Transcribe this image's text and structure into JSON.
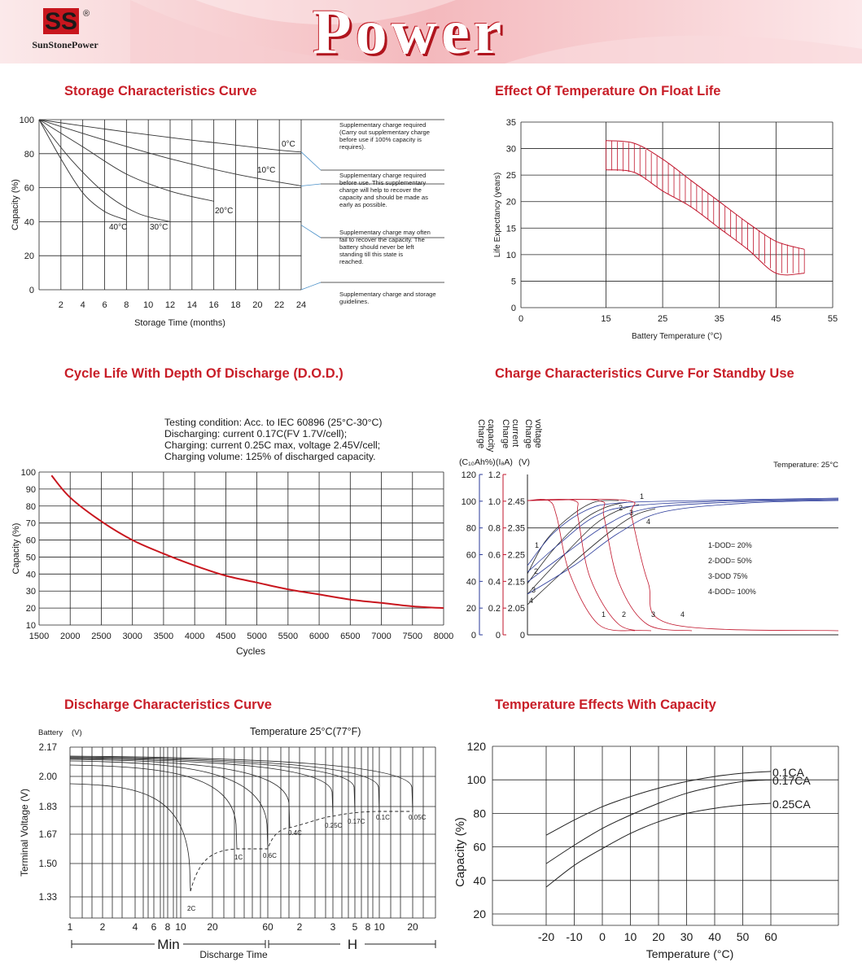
{
  "header": {
    "logo_mark": "SS",
    "logo_registered": "®",
    "logo_text": "SunStonePower",
    "banner_text": "Power"
  },
  "sections": {
    "storage": "Storage Characteristics Curve",
    "float_life": "Effect Of Temperature On Float Life",
    "cycle_life": "Cycle Life With Depth Of Discharge (D.O.D.)",
    "charge": "Charge Characteristics Curve For Standby Use",
    "discharge": "Discharge Characteristics Curve",
    "temperature": "Temperature Effects With Capacity"
  },
  "chart_data": [
    {
      "id": "storage",
      "type": "line",
      "title": "Storage Characteristics Curve",
      "xlabel": "Storage Time (months)",
      "ylabel": "Capacity (%)",
      "xlim": [
        0,
        24
      ],
      "ylim": [
        0,
        100
      ],
      "xticks": [
        2,
        4,
        6,
        8,
        10,
        12,
        14,
        16,
        18,
        20,
        22,
        24
      ],
      "yticks": [
        0,
        20,
        40,
        60,
        80,
        100
      ],
      "grid": true,
      "series": [
        {
          "name": "0°C",
          "x": [
            0,
            6,
            12,
            18,
            22,
            24
          ],
          "y": [
            100,
            94.5,
            89.5,
            85,
            82,
            81
          ]
        },
        {
          "name": "10°C",
          "x": [
            0,
            6,
            12,
            18,
            24
          ],
          "y": [
            100,
            88,
            77,
            68,
            61
          ]
        },
        {
          "name": "20°C",
          "x": [
            0,
            4,
            8,
            12,
            16
          ],
          "y": [
            100,
            84,
            68,
            58,
            52
          ]
        },
        {
          "name": "30°C",
          "x": [
            0,
            3,
            6,
            9,
            12
          ],
          "y": [
            100,
            76,
            57,
            45,
            40
          ]
        },
        {
          "name": "40°C",
          "x": [
            0,
            2,
            4,
            6,
            8
          ],
          "y": [
            100,
            77,
            57,
            46,
            41
          ]
        }
      ],
      "guidelines": [
        "Supplementary charge required (Carry out supplementary charge before use if 100% capacity is requires).",
        "Supplementary charge required before use. This supplementary charge will help to recover the capacity and should be made as early as possible.",
        "Supplementary charge may often fail to recover the capacity. The battery should never be left standing till this state is reached.",
        "Supplementary charge and storage guidelines."
      ]
    },
    {
      "id": "float_life",
      "type": "area",
      "title": "Effect Of Temperature On Float Life",
      "xlabel": "Battery Temperature (°C)",
      "ylabel": "Life Expectancy (years)",
      "xlim": [
        0,
        55
      ],
      "ylim": [
        0,
        35
      ],
      "xticks": [
        0,
        15,
        25,
        35,
        45,
        55
      ],
      "yticks": [
        0,
        5,
        10,
        15,
        20,
        25,
        30,
        35
      ],
      "grid": true,
      "band_upper": {
        "x": [
          15,
          20,
          25,
          30,
          35,
          40,
          45,
          50
        ],
        "y": [
          31.5,
          31,
          28,
          24,
          20,
          16,
          12.5,
          11
        ]
      },
      "band_lower": {
        "x": [
          15,
          20,
          25,
          30,
          35,
          40,
          45,
          50
        ],
        "y": [
          26,
          25.5,
          22,
          19,
          15,
          11,
          6.5,
          6.5
        ]
      }
    },
    {
      "id": "cycle_life",
      "type": "line",
      "title": "Cycle Life With Depth Of Discharge (D.O.D.)",
      "xlabel": "Cycles",
      "ylabel": "Capacity (%)",
      "xlim": [
        1500,
        8000
      ],
      "ylim": [
        10,
        100
      ],
      "xticks": [
        1500,
        2000,
        2500,
        3000,
        3500,
        4000,
        4500,
        5000,
        5500,
        6000,
        6500,
        7000,
        7500,
        8000
      ],
      "yticks": [
        10,
        20,
        30,
        40,
        50,
        60,
        70,
        80,
        90,
        100
      ],
      "grid": true,
      "annotation": [
        "Testing condition: Acc. to IEC 60896 (25°C-30°C)",
        "Discharging: current 0.17C(FV 1.7V/cell);",
        "Charging: current 0.25C max, voltage 2.45V/cell;",
        "Charging volume: 125% of discharged capacity."
      ],
      "series": [
        {
          "x": [
            1700,
            2000,
            2500,
            3000,
            3500,
            4000,
            4500,
            5000,
            5500,
            6000,
            6500,
            7000,
            7500,
            8000
          ],
          "y": [
            98,
            85,
            71,
            60,
            52,
            45,
            39,
            35,
            31,
            28,
            25,
            23,
            21,
            20
          ]
        }
      ]
    },
    {
      "id": "charge",
      "type": "line",
      "title": "Charge Characteristics Curve For Standby Use",
      "temperature_note": "Temperature: 25°C",
      "axis_labels": {
        "capacity": "Charge capacity",
        "current": "Charge current",
        "voltage": "Charge voltage",
        "capacity_unit": "(C₁₀Ah%)",
        "current_unit": "(IₐA)",
        "voltage_unit": "(V)"
      },
      "capacity_ticks": [
        "0",
        "20",
        "40",
        "60",
        "80",
        "100",
        "120"
      ],
      "current_ticks": [
        "0",
        "0.2",
        "0.4",
        "0.6",
        "0.8",
        "1.0",
        "1.2"
      ],
      "voltage_ticks": [
        "0",
        "2.05",
        "2.15",
        "2.25",
        "2.35",
        "2.45"
      ],
      "legend": [
        "1-DOD= 20%",
        "2-DOD= 50%",
        "3-DOD 75%",
        "4-DOD= 100%"
      ],
      "curve_labels": [
        "1",
        "2",
        "3",
        "4"
      ]
    },
    {
      "id": "discharge",
      "type": "line",
      "title": "Discharge Characteristics Curve",
      "temperature_note": "Temperature 25°C(77°F)",
      "ylabel": "Terminal Voltage (V)",
      "ylabel_top": "Battery",
      "yunit_top": "(V)",
      "xlabel": "Discharge Time",
      "yticks": [
        "2.17",
        "2.00",
        "1.83",
        "1.67",
        "1.50",
        "1.33"
      ],
      "xticks": [
        "1",
        "2",
        "4",
        "6",
        "8",
        "10",
        "20",
        "60",
        "2",
        "3",
        "5",
        "8",
        "10",
        "20"
      ],
      "xgroups": [
        "Min",
        "H"
      ],
      "rate_labels": [
        "2C",
        "1C",
        "0.6C",
        "0.4C",
        "0.25C",
        "0.17C",
        "0.1C",
        "0.05C"
      ]
    },
    {
      "id": "temperature",
      "type": "line",
      "title": "Temperature Effects With Capacity",
      "xlabel": "Temperature (°C)",
      "ylabel": "Capacity (%)",
      "xlim": [
        -20,
        60
      ],
      "ylim": [
        20,
        120
      ],
      "xticks": [
        -20,
        -10,
        0,
        10,
        20,
        30,
        40,
        50,
        60
      ],
      "yticks": [
        20,
        40,
        60,
        80,
        100,
        120
      ],
      "grid": true,
      "series": [
        {
          "name": "0.1CA",
          "x": [
            -20,
            -10,
            0,
            10,
            20,
            30,
            40,
            50,
            60
          ],
          "y": [
            67,
            76,
            84,
            90,
            95,
            99,
            102,
            104,
            105
          ]
        },
        {
          "name": "0.17CA",
          "x": [
            -20,
            -10,
            0,
            10,
            20,
            30,
            40,
            50,
            60
          ],
          "y": [
            50,
            61,
            71,
            79,
            86,
            92,
            96,
            99,
            100
          ]
        },
        {
          "name": "0.25CA",
          "x": [
            -20,
            -10,
            0,
            10,
            20,
            30,
            40,
            50,
            60
          ],
          "y": [
            36,
            49,
            59,
            68,
            75,
            80,
            83,
            85,
            86
          ]
        }
      ]
    }
  ]
}
